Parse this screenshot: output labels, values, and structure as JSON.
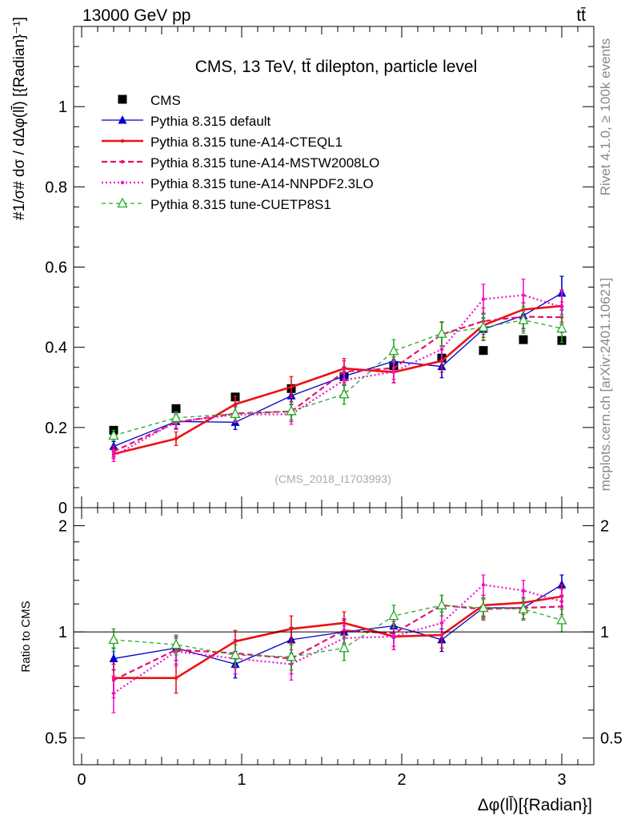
{
  "header": {
    "left_label": "13000 GeV pp",
    "right_label": "tt̄"
  },
  "side_labels": {
    "rivet": "Rivet 4.1.0, ≥ 100k events",
    "mcplots": "mcplots.cern.ch [arXiv:2401.10621]"
  },
  "chart_data": [
    {
      "type": "line",
      "panel": "main",
      "title": "CMS, 13 TeV, tt̄ dilepton, particle level",
      "watermark": "(CMS_2018_I1703993)",
      "ylabel": "#1/σ# dσ / dΔφ(ll̄) [{Radian}⁻¹]",
      "xlabel": "Δφ(ll̄)[{Radian}]",
      "xlim": [
        -0.05,
        3.2
      ],
      "ylim": [
        0,
        1.2
      ],
      "yticks": [
        0,
        0.2,
        0.4,
        0.6,
        0.8,
        1
      ],
      "ytick_labels": [
        "0",
        "0.2",
        "0.4",
        "0.6",
        "0.8",
        "1"
      ],
      "xticks": [
        0,
        1,
        2,
        3
      ],
      "xtick_labels": [
        "0",
        "1",
        "2",
        "3"
      ],
      "x": [
        0.2,
        0.59,
        0.96,
        1.31,
        1.64,
        1.95,
        2.25,
        2.51,
        2.76,
        3.0
      ],
      "bin_edges": [
        0.0,
        0.39,
        0.79,
        1.14,
        1.46,
        1.78,
        2.09,
        2.39,
        2.62,
        2.88,
        3.14
      ],
      "legend": {
        "position": "top-left",
        "entries": [
          "CMS",
          "Pythia 8.315 default",
          "Pythia 8.315 tune-A14-CTEQL1",
          "Pythia 8.315 tune-A14-MSTW2008LO",
          "Pythia 8.315 tune-A14-NNPDF2.3LO",
          "Pythia 8.315 tune-CUETP8S1"
        ]
      },
      "series": [
        {
          "name": "CMS",
          "style": "square",
          "color": "#000000",
          "values": [
            0.193,
            0.247,
            0.276,
            0.297,
            0.327,
            0.354,
            0.373,
            0.392,
            0.419,
            0.417
          ],
          "errors": [
            0.004,
            0.004,
            0.004,
            0.004,
            0.004,
            0.004,
            0.004,
            0.004,
            0.004,
            0.004
          ]
        },
        {
          "name": "Pythia 8.315 default",
          "style": "solid-triangle",
          "color": "#0000cc",
          "values": [
            0.153,
            0.215,
            0.213,
            0.279,
            0.328,
            0.365,
            0.352,
            0.445,
            0.479,
            0.535
          ],
          "errors": [
            0.012,
            0.017,
            0.018,
            0.022,
            0.023,
            0.025,
            0.028,
            0.028,
            0.032,
            0.042
          ]
        },
        {
          "name": "Pythia 8.315 tune-A14-CTEQL1",
          "style": "solid",
          "color": "#ee1111",
          "values": [
            0.134,
            0.172,
            0.258,
            0.301,
            0.347,
            0.338,
            0.366,
            0.455,
            0.494,
            0.503
          ],
          "errors": [
            0.012,
            0.017,
            0.02,
            0.026,
            0.025,
            0.026,
            0.028,
            0.03,
            0.035,
            0.04
          ]
        },
        {
          "name": "Pythia 8.315 tune-A14-MSTW2008LO",
          "style": "dashed",
          "color": "#e8106e",
          "values": [
            0.14,
            0.213,
            0.235,
            0.24,
            0.339,
            0.348,
            0.432,
            0.465,
            0.476,
            0.475
          ],
          "errors": [
            0.014,
            0.018,
            0.02,
            0.025,
            0.027,
            0.028,
            0.03,
            0.033,
            0.035,
            0.038
          ]
        },
        {
          "name": "Pythia 8.315 tune-A14-NNPDF2.3LO",
          "style": "dotted",
          "color": "#ee11cc",
          "values": [
            0.129,
            0.214,
            0.232,
            0.233,
            0.318,
            0.339,
            0.395,
            0.52,
            0.53,
            0.5
          ],
          "errors": [
            0.014,
            0.018,
            0.02,
            0.025,
            0.027,
            0.028,
            0.03,
            0.037,
            0.04,
            0.042
          ]
        },
        {
          "name": "Pythia 8.315 tune-CUETP8S1",
          "style": "dashed-open-triangle",
          "color": "#22aa22",
          "values": [
            0.18,
            0.224,
            0.234,
            0.241,
            0.283,
            0.391,
            0.434,
            0.45,
            0.468,
            0.447
          ],
          "errors": [
            0.013,
            0.015,
            0.017,
            0.022,
            0.025,
            0.028,
            0.03,
            0.032,
            0.033,
            0.035
          ]
        }
      ]
    },
    {
      "type": "line",
      "panel": "ratio",
      "ylabel": "Ratio to CMS",
      "ylim": [
        0.42,
        2.25
      ],
      "yscale": "log",
      "yticks": [
        0.5,
        1,
        2
      ],
      "ytick_labels": [
        "0.5",
        "1",
        "2"
      ],
      "reference_line": 1,
      "series": [
        {
          "name": "CMS",
          "values": [
            1,
            1,
            1,
            1,
            1,
            1,
            1,
            1,
            1,
            1
          ],
          "errors": [
            0.02,
            0.016,
            0.015,
            0.013,
            0.012,
            0.011,
            0.011,
            0.01,
            0.01,
            0.01
          ]
        },
        {
          "name": "Pythia 8.315 default",
          "values": [
            0.84,
            0.9,
            0.81,
            0.95,
            1.0,
            1.04,
            0.95,
            1.17,
            1.17,
            1.36
          ],
          "errors": [
            0.06,
            0.07,
            0.07,
            0.08,
            0.08,
            0.08,
            0.07,
            0.07,
            0.08,
            0.09
          ]
        },
        {
          "name": "Pythia 8.315 tune-A14-CTEQL1",
          "values": [
            0.74,
            0.74,
            0.94,
            1.02,
            1.06,
            0.97,
            0.98,
            1.19,
            1.21,
            1.26
          ],
          "errors": [
            0.07,
            0.07,
            0.07,
            0.09,
            0.08,
            0.08,
            0.08,
            0.08,
            0.09,
            0.1
          ]
        },
        {
          "name": "Pythia 8.315 tune-A14-MSTW2008LO",
          "values": [
            0.73,
            0.89,
            0.87,
            0.84,
            1.01,
            0.99,
            1.19,
            1.16,
            1.17,
            1.18
          ],
          "errors": [
            0.08,
            0.08,
            0.08,
            0.08,
            0.08,
            0.08,
            0.08,
            0.08,
            0.08,
            0.09
          ]
        },
        {
          "name": "Pythia 8.315 tune-A14-NNPDF2.3LO",
          "values": [
            0.67,
            0.88,
            0.84,
            0.81,
            0.96,
            0.97,
            1.06,
            1.36,
            1.31,
            1.22
          ],
          "errors": [
            0.08,
            0.08,
            0.08,
            0.08,
            0.08,
            0.08,
            0.08,
            0.09,
            0.09,
            0.1
          ]
        },
        {
          "name": "Pythia 8.315 tune-CUETP8S1",
          "values": [
            0.95,
            0.92,
            0.86,
            0.85,
            0.9,
            1.11,
            1.19,
            1.17,
            1.16,
            1.08
          ],
          "errors": [
            0.07,
            0.06,
            0.06,
            0.07,
            0.07,
            0.08,
            0.08,
            0.08,
            0.08,
            0.08
          ]
        }
      ]
    }
  ]
}
